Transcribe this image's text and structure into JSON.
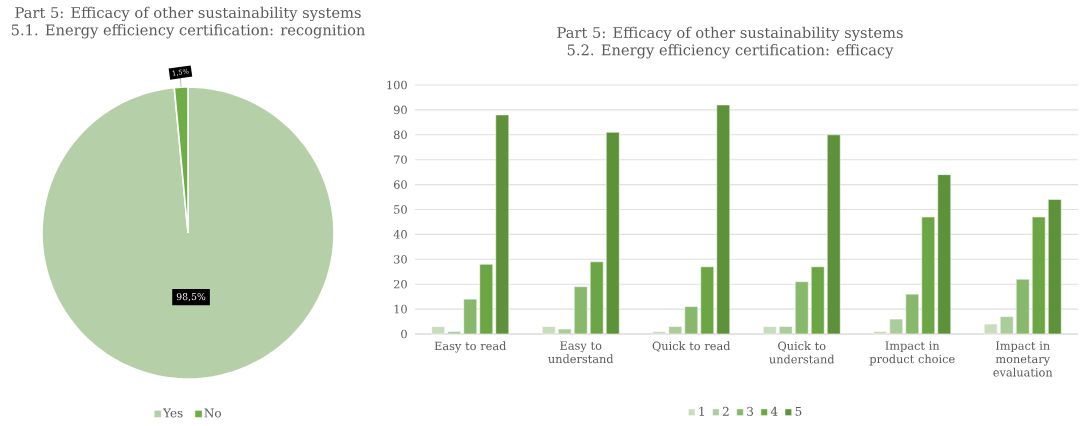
{
  "chart_data": [
    {
      "type": "pie",
      "title": "Part 5: Efficacy of other sustainability systems",
      "subtitle": "5.1. Energy efficiency certification: recognition",
      "categories": [
        "Yes",
        "No"
      ],
      "values": [
        98.5,
        1.5
      ],
      "value_labels": [
        "98,5%",
        "1,5%"
      ],
      "colors": [
        "#b5d0a8",
        "#70ad47"
      ],
      "legend": "bottom"
    },
    {
      "type": "bar",
      "title": "Part 5: Efficacy of other sustainability systems",
      "subtitle": "5.2. Energy efficiency certification: efficacy",
      "categories": [
        "Easy to read",
        "Easy to understand",
        "Quick to read",
        "Quick to understand",
        "Impact in product choice",
        "Impact in monetary evaluation"
      ],
      "series": [
        {
          "name": "1",
          "color": "#c8dcbe",
          "values": [
            3,
            3,
            1,
            3,
            1,
            4
          ]
        },
        {
          "name": "2",
          "color": "#abcd9a",
          "values": [
            1,
            2,
            3,
            3,
            6,
            7
          ]
        },
        {
          "name": "3",
          "color": "#88b86c",
          "values": [
            14,
            19,
            11,
            21,
            16,
            22
          ]
        },
        {
          "name": "4",
          "color": "#6ca543",
          "values": [
            28,
            29,
            27,
            27,
            47,
            47
          ]
        },
        {
          "name": "5",
          "color": "#5e923a",
          "values": [
            88,
            81,
            92,
            80,
            64,
            54
          ]
        }
      ],
      "ylim": [
        0,
        100
      ],
      "yticks": [
        0,
        10,
        20,
        30,
        40,
        50,
        60,
        70,
        80,
        90,
        100
      ],
      "grid": "y",
      "legend": "bottom"
    }
  ]
}
